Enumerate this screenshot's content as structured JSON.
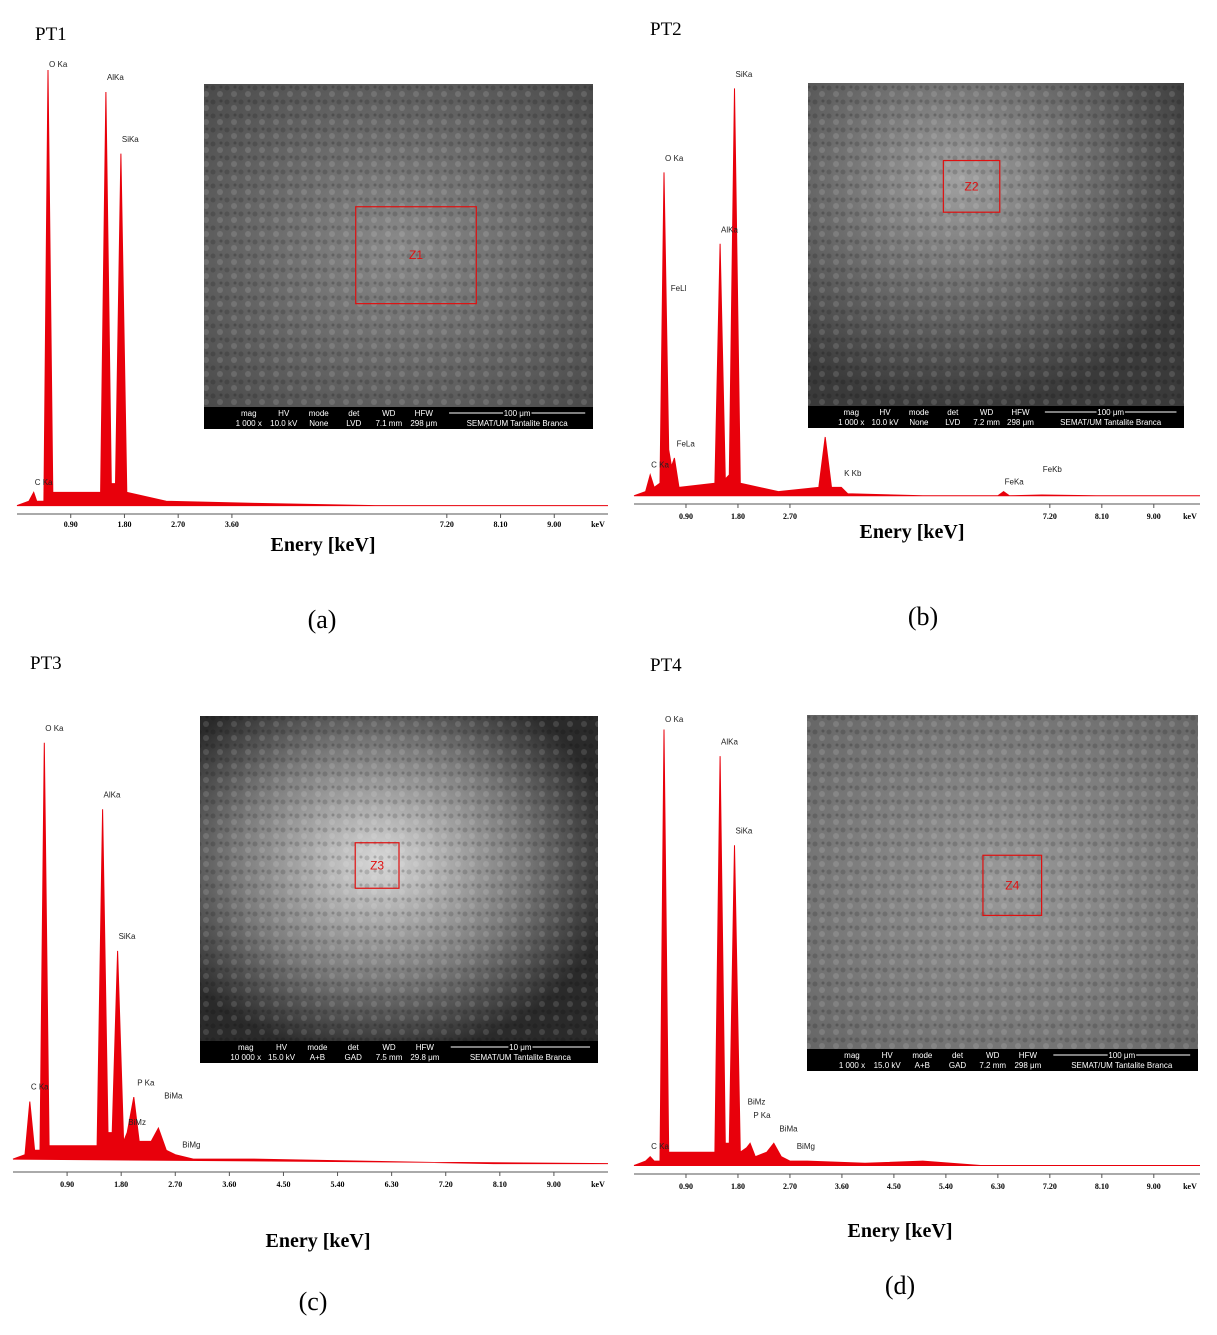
{
  "chart_data": [
    {
      "type": "area",
      "title": "PT1",
      "caption": "(a)",
      "x_label": "Enery [keV]",
      "x_unit": "keV",
      "color": "#e8000b",
      "xlim": [
        0,
        9.9
      ],
      "ylim": [
        0,
        100
      ],
      "xticks": [
        {
          "value": 0.9,
          "label": "0.90"
        },
        {
          "value": 1.8,
          "label": "1.80"
        },
        {
          "value": 2.7,
          "label": "2.70"
        },
        {
          "value": 3.6,
          "label": "3.60"
        },
        {
          "value": 7.2,
          "label": "7.20"
        },
        {
          "value": 8.1,
          "label": "8.10"
        },
        {
          "value": 9,
          "label": "9.00"
        }
      ],
      "x": [
        0,
        0.2,
        0.28,
        0.33,
        0.45,
        0.52,
        0.6,
        1.4,
        1.49,
        1.58,
        1.65,
        1.74,
        1.84,
        2.5,
        4,
        6,
        8,
        9.9
      ],
      "values": [
        1,
        2,
        4,
        2,
        2,
        100,
        4,
        4,
        95,
        6,
        6,
        81,
        4,
        2,
        1.5,
        1,
        1,
        1
      ],
      "annotations": [
        {
          "label": "C Ka",
          "x": 0.28,
          "y": 5
        },
        {
          "label": "O Ka",
          "x": 0.52,
          "y": 100
        },
        {
          "label": "AlKa",
          "x": 1.49,
          "y": 97
        },
        {
          "label": "SiKa",
          "x": 1.74,
          "y": 83
        }
      ],
      "inset": {
        "zone": "Z1",
        "headers": [
          "mag",
          "HV",
          "mode",
          "det",
          "WD",
          "HFW"
        ],
        "settings": [
          "1 000 x",
          "10.0 kV",
          "None",
          "LVD",
          "7.1 mm",
          "298 μm"
        ],
        "scale": "100 μm",
        "credit": "SEMAT/UM Tantalite Branca"
      }
    },
    {
      "type": "area",
      "title": "PT2",
      "caption": "(b)",
      "x_label": "Enery [keV]",
      "x_unit": "keV",
      "color": "#e8000b",
      "xlim": [
        0,
        9.8
      ],
      "ylim": [
        0,
        100
      ],
      "xticks": [
        {
          "value": 0.9,
          "label": "0.90"
        },
        {
          "value": 1.8,
          "label": "1.80"
        },
        {
          "value": 2.7,
          "label": "2.70"
        },
        {
          "value": 7.2,
          "label": "7.20"
        },
        {
          "value": 8.1,
          "label": "8.10"
        },
        {
          "value": 9,
          "label": "9.00"
        }
      ],
      "x": [
        0,
        0.2,
        0.28,
        0.35,
        0.45,
        0.52,
        0.6,
        0.65,
        0.7,
        0.78,
        1.4,
        1.49,
        1.58,
        1.65,
        1.74,
        1.84,
        2.5,
        3.2,
        3.31,
        3.42,
        3.59,
        3.7,
        5,
        6.3,
        6.4,
        6.5,
        7.06,
        8,
        9.8
      ],
      "values": [
        1,
        2,
        6,
        3,
        4,
        78,
        12,
        8,
        10,
        3,
        4,
        61,
        5,
        6,
        98,
        4,
        2,
        3,
        15,
        3,
        3,
        1.5,
        1,
        1,
        2,
        1,
        1.2,
        1,
        1
      ],
      "annotations": [
        {
          "label": "C Ka",
          "x": 0.28,
          "y": 7
        },
        {
          "label": "O Ka",
          "x": 0.52,
          "y": 80
        },
        {
          "label": "FeLl",
          "x": 0.62,
          "y": 49
        },
        {
          "label": "FeLa",
          "x": 0.72,
          "y": 12
        },
        {
          "label": "AlKa",
          "x": 1.49,
          "y": 63
        },
        {
          "label": "SiKa",
          "x": 1.74,
          "y": 100
        },
        {
          "label": "K Ka",
          "x": 3.31,
          "y": 17
        },
        {
          "label": "K Kb",
          "x": 3.62,
          "y": 5
        },
        {
          "label": "FeKa",
          "x": 6.4,
          "y": 3
        },
        {
          "label": "FeKb",
          "x": 7.06,
          "y": 6
        }
      ],
      "inset": {
        "zone": "Z2",
        "headers": [
          "mag",
          "HV",
          "mode",
          "det",
          "WD",
          "HFW"
        ],
        "settings": [
          "1 000 x",
          "10.0 kV",
          "None",
          "LVD",
          "7.2 mm",
          "298 μm"
        ],
        "scale": "100 μm",
        "credit": "SEMAT/UM Tantalite Branca"
      }
    },
    {
      "type": "area",
      "title": "PT3",
      "caption": "(c)",
      "x_label": "Enery [keV]",
      "x_unit": "keV",
      "color": "#e8000b",
      "xlim": [
        0,
        9.9
      ],
      "ylim": [
        0,
        100
      ],
      "xticks": [
        {
          "value": 0.9,
          "label": "0.90"
        },
        {
          "value": 1.8,
          "label": "1.80"
        },
        {
          "value": 2.7,
          "label": "2.70"
        },
        {
          "value": 3.6,
          "label": "3.60"
        },
        {
          "value": 4.5,
          "label": "4.50"
        },
        {
          "value": 5.4,
          "label": "5.40"
        },
        {
          "value": 6.3,
          "label": "6.30"
        },
        {
          "value": 7.2,
          "label": "7.20"
        },
        {
          "value": 8.1,
          "label": "8.10"
        },
        {
          "value": 9,
          "label": "9.00"
        }
      ],
      "x": [
        0,
        0.2,
        0.28,
        0.36,
        0.45,
        0.52,
        0.6,
        1.4,
        1.49,
        1.58,
        1.65,
        1.74,
        1.84,
        1.9,
        2.01,
        2.1,
        2.3,
        2.42,
        2.55,
        2.7,
        3,
        4,
        6,
        8,
        9.9
      ],
      "values": [
        2,
        3,
        15,
        4,
        4,
        96,
        5,
        5,
        81,
        8,
        8,
        49,
        6,
        8,
        16,
        6,
        6,
        9,
        4,
        3,
        2,
        2,
        1.5,
        1,
        1
      ],
      "annotations": [
        {
          "label": "C Ka",
          "x": 0.28,
          "y": 17
        },
        {
          "label": "O Ka",
          "x": 0.52,
          "y": 98
        },
        {
          "label": "AlKa",
          "x": 1.49,
          "y": 83
        },
        {
          "label": "SiKa",
          "x": 1.74,
          "y": 51
        },
        {
          "label": "BiMz",
          "x": 1.9,
          "y": 9
        },
        {
          "label": "P Ka",
          "x": 2.05,
          "y": 18
        },
        {
          "label": "BiMa",
          "x": 2.5,
          "y": 15
        },
        {
          "label": "BiMg",
          "x": 2.8,
          "y": 4
        }
      ],
      "inset": {
        "zone": "Z3",
        "headers": [
          "mag",
          "HV",
          "mode",
          "det",
          "WD",
          "HFW"
        ],
        "settings": [
          "10 000 x",
          "15.0 kV",
          "A+B",
          "GAD",
          "7.5 mm",
          "29.8 μm"
        ],
        "scale": "10 μm",
        "credit": "SEMAT/UM Tantalite Branca"
      }
    },
    {
      "type": "area",
      "title": "PT4",
      "caption": "(d)",
      "x_label": "Enery [keV]",
      "x_unit": "keV",
      "color": "#e8000b",
      "xlim": [
        0,
        9.8
      ],
      "ylim": [
        0,
        100
      ],
      "xticks": [
        {
          "value": 0.9,
          "label": "0.90"
        },
        {
          "value": 1.8,
          "label": "1.80"
        },
        {
          "value": 2.7,
          "label": "2.70"
        },
        {
          "value": 3.6,
          "label": "3.60"
        },
        {
          "value": 4.5,
          "label": "4.50"
        },
        {
          "value": 5.4,
          "label": "5.40"
        },
        {
          "value": 6.3,
          "label": "6.30"
        },
        {
          "value": 7.2,
          "label": "7.20"
        },
        {
          "value": 8.1,
          "label": "8.10"
        },
        {
          "value": 9,
          "label": "9.00"
        }
      ],
      "x": [
        0,
        0.2,
        0.28,
        0.35,
        0.45,
        0.52,
        0.6,
        1.4,
        1.49,
        1.58,
        1.65,
        1.74,
        1.84,
        1.95,
        2.01,
        2.1,
        2.3,
        2.42,
        2.55,
        2.7,
        3,
        4,
        5,
        6,
        8,
        9.8
      ],
      "values": [
        1,
        2,
        3,
        2,
        2,
        99,
        4,
        4,
        93,
        6,
        6,
        73,
        4,
        5,
        6,
        3,
        4,
        6,
        3,
        2,
        2,
        1.5,
        2,
        1,
        1,
        1
      ],
      "annotations": [
        {
          "label": "C Ka",
          "x": 0.28,
          "y": 4
        },
        {
          "label": "O Ka",
          "x": 0.52,
          "y": 100
        },
        {
          "label": "AlKa",
          "x": 1.49,
          "y": 95
        },
        {
          "label": "SiKa",
          "x": 1.74,
          "y": 75
        },
        {
          "label": "BiMz",
          "x": 1.95,
          "y": 14
        },
        {
          "label": "P Ka",
          "x": 2.05,
          "y": 11
        },
        {
          "label": "BiMa",
          "x": 2.5,
          "y": 8
        },
        {
          "label": "BiMg",
          "x": 2.8,
          "y": 4
        }
      ],
      "inset": {
        "zone": "Z4",
        "headers": [
          "mag",
          "HV",
          "mode",
          "det",
          "WD",
          "HFW"
        ],
        "settings": [
          "1 000 x",
          "15.0 kV",
          "A+B",
          "GAD",
          "7.2 mm",
          "298 μm"
        ],
        "scale": "100 μm",
        "credit": "SEMAT/UM Tantalite Branca"
      }
    }
  ]
}
